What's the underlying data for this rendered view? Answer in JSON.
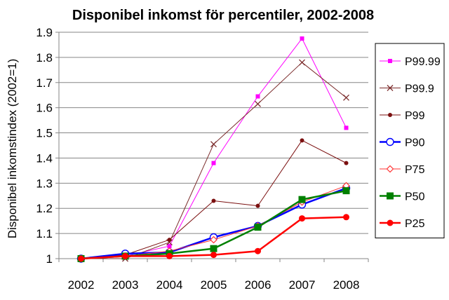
{
  "chart_data": {
    "type": "line",
    "title": "Disponibel inkomst för percentiler, 2002-2008",
    "xlabel": "",
    "ylabel": "Disponibel inkomstindex (2002=1)",
    "ylim": [
      1,
      1.9
    ],
    "yticks": [
      "1",
      "1.1",
      "1.2",
      "1.3",
      "1.4",
      "1.5",
      "1.6",
      "1.7",
      "1.8",
      "1.9"
    ],
    "categories": [
      "2002",
      "2003",
      "2004",
      "2005",
      "2006",
      "2007",
      "2008"
    ],
    "grid": "horizontal",
    "legend_position": "right",
    "series": [
      {
        "name": "P99.99",
        "color": "#ff00ff",
        "marker": "square-small",
        "width": 1,
        "values": [
          1.0,
          1.01,
          1.05,
          1.38,
          1.645,
          1.875,
          1.52
        ]
      },
      {
        "name": "P99.9",
        "color": "#7b2c2c",
        "marker": "x",
        "width": 1,
        "values": [
          1.0,
          1.0,
          1.065,
          1.455,
          1.615,
          1.78,
          1.64
        ]
      },
      {
        "name": "P99",
        "color": "#7b1010",
        "marker": "dot",
        "width": 1,
        "values": [
          1.0,
          1.015,
          1.075,
          1.23,
          1.21,
          1.47,
          1.38
        ]
      },
      {
        "name": "P90",
        "color": "#0000ff",
        "marker": "open-circle",
        "width": 2.5,
        "values": [
          1.0,
          1.02,
          1.025,
          1.085,
          1.13,
          1.215,
          1.28
        ]
      },
      {
        "name": "P75",
        "color": "#ff3333",
        "marker": "open-diamond",
        "width": 1,
        "values": [
          1.0,
          1.01,
          1.03,
          1.075,
          1.13,
          1.225,
          1.29
        ]
      },
      {
        "name": "P50",
        "color": "#008000",
        "marker": "square",
        "width": 2.5,
        "values": [
          1.0,
          1.01,
          1.02,
          1.04,
          1.125,
          1.235,
          1.27
        ]
      },
      {
        "name": "P25",
        "color": "#ff0000",
        "marker": "dot-large",
        "width": 2.5,
        "values": [
          1.0,
          1.01,
          1.01,
          1.015,
          1.03,
          1.16,
          1.165
        ]
      }
    ]
  }
}
